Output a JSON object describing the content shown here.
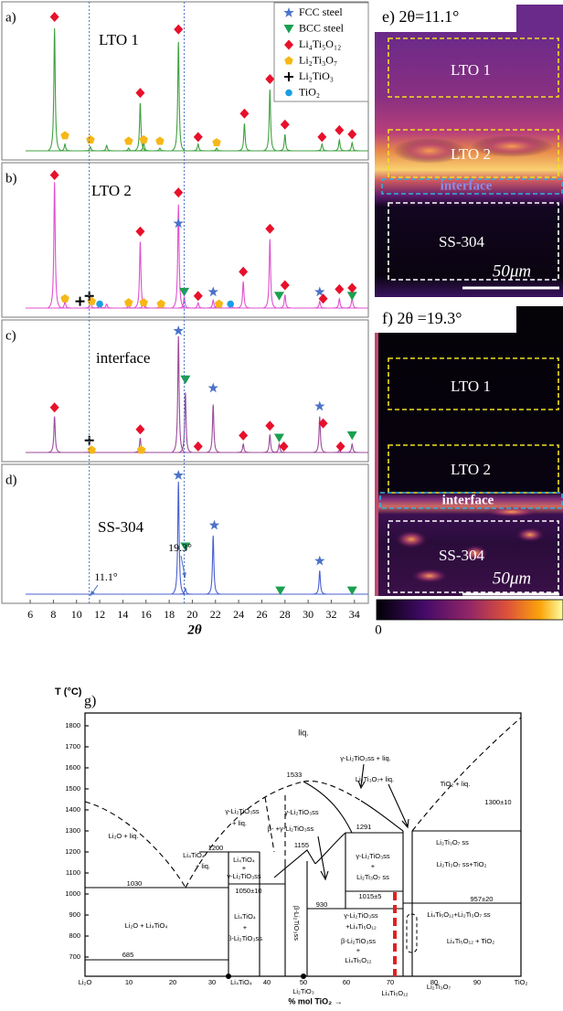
{
  "xrd": {
    "x_label": "2θ",
    "xlim": [
      5.6,
      35.2
    ],
    "xticks": [
      6,
      8,
      10,
      12,
      14,
      16,
      18,
      20,
      22,
      24,
      26,
      28,
      30,
      32,
      34
    ],
    "reference_lines": [
      11.1,
      19.3
    ],
    "legend": [
      {
        "label": "FCC steel",
        "marker": "star",
        "color": "#4a72c8"
      },
      {
        "label": "BCC steel",
        "marker": "triangle",
        "color": "#1aa050"
      },
      {
        "label": "Li₄Ti₅O₁₂",
        "marker": "diamond",
        "color": "#e8102a"
      },
      {
        "label": "Li₂Ti₃O₇",
        "marker": "pentagon",
        "color": "#f6b818"
      },
      {
        "label": "Li₂TiO₃",
        "marker": "plus",
        "color": "#000000"
      },
      {
        "label": "TiO₂",
        "marker": "circle",
        "color": "#1a9ee0"
      }
    ],
    "panels": [
      {
        "letter": "a)",
        "label": "LTO 1",
        "color": "#3fa040",
        "peak_x": [
          8.1,
          9.0,
          11.2,
          12.6,
          14.5,
          15.5,
          15.8,
          17.2,
          18.8,
          20.5,
          22.1,
          24.5,
          26.7,
          28.0,
          31.2,
          32.7,
          33.8
        ],
        "peak_height": [
          0.9,
          0.05,
          0.03,
          0.04,
          0.02,
          0.35,
          0.06,
          0.02,
          0.8,
          0.05,
          0.02,
          0.2,
          0.45,
          0.12,
          0.05,
          0.08,
          0.06
        ],
        "markers": [
          {
            "x": [],
            "y": []
          },
          {
            "x": [],
            "y": []
          },
          {
            "x": [
              8.1,
              15.5,
              18.8,
              20.5,
              24.5,
              26.7,
              28.0,
              31.2,
              32.7,
              33.8
            ],
            "y": [
              0.97,
              0.42,
              0.88,
              0.1,
              0.27,
              0.52,
              0.19,
              0.1,
              0.15,
              0.12
            ]
          },
          {
            "x": [
              9.0,
              11.2,
              14.5,
              15.8,
              17.2,
              22.1
            ],
            "y": [
              0.11,
              0.08,
              0.07,
              0.08,
              0.07,
              0.06
            ]
          },
          {
            "x": [],
            "y": []
          },
          {
            "x": [],
            "y": []
          }
        ]
      },
      {
        "letter": "b)",
        "label": "LTO 2",
        "color": "#e050d0",
        "peak_x": [
          8.1,
          9.0,
          11.2,
          12.0,
          12.6,
          14.5,
          15.5,
          15.8,
          17.2,
          18.8,
          19.3,
          20.5,
          21.8,
          22.1,
          23.4,
          24.4,
          26.7,
          28.0,
          31.0,
          32.7,
          33.8
        ],
        "peak_height": [
          0.95,
          0.05,
          0.05,
          0.03,
          0.03,
          0.02,
          0.5,
          0.06,
          0.02,
          0.78,
          0.08,
          0.04,
          0.06,
          0.02,
          0.02,
          0.2,
          0.52,
          0.1,
          0.05,
          0.07,
          0.08
        ],
        "markers": [
          {
            "x": [
              18.8,
              21.8,
              31.0
            ],
            "y": [
              0.63,
              0.12,
              0.12
            ]
          },
          {
            "x": [
              19.3,
              27.5,
              33.8
            ],
            "y": [
              0.12,
              0.09,
              0.09
            ]
          },
          {
            "x": [
              8.1,
              15.5,
              18.8,
              20.5,
              24.4,
              26.7,
              28.0,
              31.3,
              32.7,
              33.8
            ],
            "y": [
              0.99,
              0.57,
              0.86,
              0.09,
              0.27,
              0.59,
              0.17,
              0.07,
              0.14,
              0.15
            ]
          },
          {
            "x": [
              9.0,
              11.3,
              14.5,
              15.8,
              17.3,
              22.3
            ],
            "y": [
              0.07,
              0.05,
              0.04,
              0.04,
              0.03,
              0.03
            ]
          },
          {
            "x": [
              10.3,
              11.1
            ],
            "y": [
              0.05,
              0.09
            ]
          },
          {
            "x": [
              12.0,
              23.3
            ],
            "y": [
              0.03,
              0.03
            ]
          }
        ]
      },
      {
        "letter": "c)",
        "label": "interface",
        "color": "#9a4a9a",
        "peak_x": [
          8.1,
          11.2,
          15.5,
          18.8,
          19.4,
          21.8,
          24.4,
          26.7,
          27.5,
          31.0,
          32.7,
          33.8
        ],
        "peak_height": [
          0.3,
          0.02,
          0.12,
          0.97,
          0.5,
          0.4,
          0.07,
          0.15,
          0.07,
          0.3,
          0.02,
          0.07
        ],
        "markers": [
          {
            "x": [
              18.8,
              21.8,
              31.0
            ],
            "y": [
              1.0,
              0.53,
              0.38
            ]
          },
          {
            "x": [
              19.4,
              27.5,
              33.8
            ],
            "y": [
              0.6,
              0.12,
              0.14
            ]
          },
          {
            "x": [
              8.1,
              15.5,
              20.5,
              24.4,
              26.7,
              27.9,
              31.3,
              32.8
            ],
            "y": [
              0.37,
              0.19,
              0.05,
              0.14,
              0.22,
              0.05,
              0.24,
              0.05
            ]
          },
          {
            "x": [
              11.3,
              15.6
            ],
            "y": [
              0.02,
              0.02
            ]
          },
          {
            "x": [
              11.1
            ],
            "y": [
              0.1
            ]
          },
          {
            "x": [],
            "y": []
          }
        ]
      },
      {
        "letter": "d)",
        "label": "SS-304",
        "color": "#4a5fd0",
        "peak_x": [
          18.8,
          19.4,
          21.8,
          31.0
        ],
        "peak_height": [
          0.96,
          0.05,
          0.5,
          0.2
        ],
        "markers": [
          {
            "x": [
              18.8,
              21.9,
              31.0
            ],
            "y": [
              1.0,
              0.58,
              0.28
            ]
          },
          {
            "x": [
              19.4,
              27.6,
              33.8
            ],
            "y": [
              0.4,
              0.03,
              0.03
            ]
          },
          {
            "x": [],
            "y": []
          },
          {
            "x": [],
            "y": []
          },
          {
            "x": [],
            "y": []
          },
          {
            "x": [],
            "y": []
          }
        ],
        "annotations": [
          "11.1°",
          "19.3°"
        ]
      }
    ]
  },
  "images": [
    {
      "title": "e) 2θ=11.1°",
      "regions": [
        "LTO 1",
        "LTO 2",
        "interface",
        "SS-304"
      ],
      "scale_bar": "50μm"
    },
    {
      "title": "f) 2θ =19.3°",
      "regions": [
        "LTO 1",
        "LTO 2",
        "interface",
        "SS-304"
      ],
      "scale_bar": "50μm"
    }
  ],
  "colorbar": {
    "min_label": "0"
  },
  "phase_diagram": {
    "letter": "g)",
    "y_label": "T (°C)",
    "x_label": "% mol TiO₂ →",
    "y_tick_labels": [
      "1800",
      "1700",
      "1600",
      "1500",
      "1400",
      "1300",
      "1200",
      "1100",
      "1000",
      "900",
      "800",
      "700"
    ],
    "x_tick_labels": [
      "Li₂O",
      "10",
      "20",
      "30",
      "Li₄TiO₄",
      "40",
      "50",
      "60",
      "70",
      "80",
      "90",
      "TiO₂"
    ],
    "x_compound_labels": [
      "Li₂TiO₃",
      "Li₄Ti₅O₁₂",
      "Li₂Ti₃O₇"
    ],
    "region_labels": [
      "liq.",
      "1533",
      "γ-Li₂TiO₃ss + liq.",
      "Li₂Ti₃O₇+ liq.",
      "TiO₂ + liq.",
      "1300±10",
      "γ-Li₂TiO₃ss",
      "+ liq.",
      "γ-Li₂TiO₃ss",
      "β- +γ-Li₂TiO₃ss",
      "1291",
      "Li₂O + liq.",
      "1200",
      "Li₄TiO₄",
      "+ liq.",
      "Li₄TiO₄",
      "+",
      "γ-Li₂TiO₃ss",
      "1155",
      "Li₂Ti₃O₇ ss",
      "γ-Li₂TiO₃ss",
      "+",
      "Li₂Ti₃O₇ ss",
      "Li₂Ti₃O₇ ss+TiO₂",
      "1030",
      "1050±10",
      "1015±5",
      "957±20",
      "Li₄Ti₅O₁₂+Li₂Ti₃O₇ ss",
      "Li₄TiO₄",
      "+",
      "β-Li₂TiO₃ss",
      "β-Li₂TiO₃ss",
      "930",
      "γ-Li₂TiO₃ss",
      "+Li₄Ti₅O₁₂",
      "β-Li₂TiO₃ss",
      "+",
      "Li₄Ti₅O₁₂",
      "Li₂O + Li₄TiO₄",
      "Li₄Ti₅O₁₂ + TiO₂",
      "685"
    ]
  }
}
